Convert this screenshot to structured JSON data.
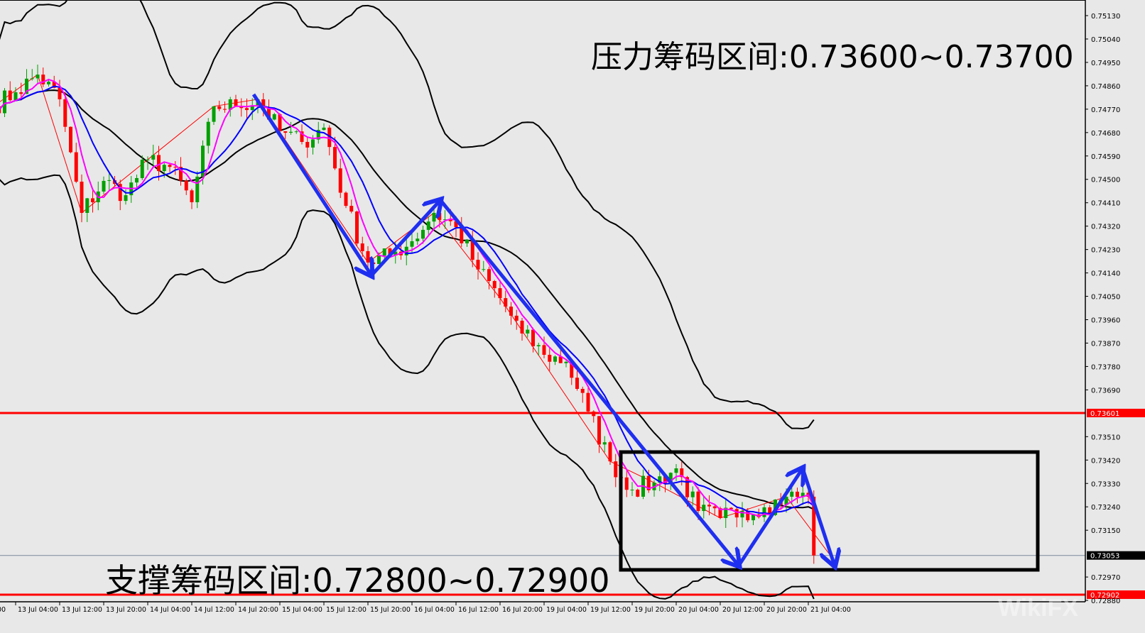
{
  "chart_data": {
    "type": "candlestick",
    "timeframe": "H1",
    "price_path": [
      {
        "t": "13 Jul 00:00",
        "close": 0.74781
      },
      {
        "t": "13 Jul 04:00",
        "close": 0.74835
      },
      {
        "t": "13 Jul 08:00",
        "close": 0.74903
      },
      {
        "t": "13 Jul 12:00",
        "close": 0.74808
      },
      {
        "t": "13 Jul 16:00",
        "close": 0.74371
      },
      {
        "t": "13 Jul 20:00",
        "close": 0.74494
      },
      {
        "t": "14 Jul 00:00",
        "close": 0.74439
      },
      {
        "t": "14 Jul 04:00",
        "close": 0.74576
      },
      {
        "t": "14 Jul 08:00",
        "close": 0.74548
      },
      {
        "t": "14 Jul 12:00",
        "close": 0.74412
      },
      {
        "t": "14 Jul 16:00",
        "close": 0.74781
      },
      {
        "t": "14 Jul 20:00",
        "close": 0.74781
      },
      {
        "t": "15 Jul 00:00",
        "close": 0.74808
      },
      {
        "t": "15 Jul 04:00",
        "close": 0.74685
      },
      {
        "t": "15 Jul 08:00",
        "close": 0.74644
      },
      {
        "t": "15 Jul 12:00",
        "close": 0.74699
      },
      {
        "t": "15 Jul 16:00",
        "close": 0.74398
      },
      {
        "t": "15 Jul 20:00",
        "close": 0.7418
      },
      {
        "t": "16 Jul 00:00",
        "close": 0.74207
      },
      {
        "t": "16 Jul 04:00",
        "close": 0.74262
      },
      {
        "t": "16 Jul 08:00",
        "close": 0.74371
      },
      {
        "t": "16 Jul 12:00",
        "close": 0.74316
      },
      {
        "t": "16 Jul 16:00",
        "close": 0.74153
      },
      {
        "t": "16 Jul 20:00",
        "close": 0.74043
      },
      {
        "t": "19 Jul 00:00",
        "close": 0.73907
      },
      {
        "t": "19 Jul 04:00",
        "close": 0.73825
      },
      {
        "t": "19 Jul 08:00",
        "close": 0.73798
      },
      {
        "t": "19 Jul 12:00",
        "close": 0.73607
      },
      {
        "t": "19 Jul 16:00",
        "close": 0.73415
      },
      {
        "t": "19 Jul 20:00",
        "close": 0.73306
      },
      {
        "t": "20 Jul 00:00",
        "close": 0.73333
      },
      {
        "t": "20 Jul 04:00",
        "close": 0.73388
      },
      {
        "t": "20 Jul 08:00",
        "close": 0.73224
      },
      {
        "t": "20 Jul 12:00",
        "close": 0.73197
      },
      {
        "t": "20 Jul 16:00",
        "close": 0.73224
      },
      {
        "t": "20 Jul 20:00",
        "close": 0.73238
      },
      {
        "t": "21 Jul 00:00",
        "close": 0.73279
      },
      {
        "t": "21 Jul 04:00",
        "close": 0.73279
      },
      {
        "t": "21 Jul 05:00",
        "close": 0.73053
      }
    ],
    "indicators": [
      "Bollinger Bands",
      "moving average (magenta)",
      "moving average (blue)",
      "ZigZag"
    ],
    "y_ticks": [
      "0.75130",
      "0.75040",
      "0.74950",
      "0.74860",
      "0.74770",
      "0.74680",
      "0.74590",
      "0.74500",
      "0.74410",
      "0.74320",
      "0.74230",
      "0.74140",
      "0.74050",
      "0.73960",
      "0.73870",
      "0.73780",
      "0.73690",
      "0.73510",
      "0.73420",
      "0.73330",
      "0.73240",
      "0.73150",
      "0.72970",
      "0.72880"
    ],
    "x_ticks": [
      "00",
      "13 Jul 04:00",
      "13 Jul 12:00",
      "13 Jul 20:00",
      "14 Jul 04:00",
      "14 Jul 12:00",
      "14 Jul 20:00",
      "15 Jul 04:00",
      "15 Jul 12:00",
      "15 Jul 20:00",
      "16 Jul 04:00",
      "16 Jul 12:00",
      "16 Jul 20:00",
      "19 Jul 04:00",
      "19 Jul 12:00",
      "19 Jul 20:00",
      "20 Jul 04:00",
      "20 Jul 12:00",
      "20 Jul 20:00",
      "21 Jul 04:00"
    ],
    "ylim": [
      0.7286,
      0.7519
    ],
    "horizontal_lines": [
      {
        "price": "0.73601",
        "color": "#ff0000"
      },
      {
        "price": "0.72902",
        "color": "#ff0000"
      },
      {
        "price": "0.73053",
        "color": "#000000",
        "kind": "current-price"
      }
    ],
    "annotations": {
      "resistance": "压力筹码区间:0.73600~0.73700",
      "support": "支撑筹码区间:0.72800~0.72900"
    },
    "colors": {
      "bull": "#00a000",
      "bear": "#ff0000",
      "ma_fast": "#ff00ff",
      "ma_slow": "#0000ff",
      "bands": "#000000",
      "arrows": "#1f2ff0",
      "background": "#e8e8e8"
    }
  },
  "watermark": "WikiFX"
}
